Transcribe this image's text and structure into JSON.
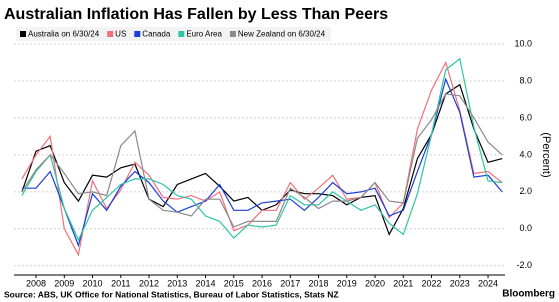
{
  "chart_data": {
    "type": "line",
    "title": "Australian Inflation Has Fallen by Less Than Peers",
    "y_axis_label": "(Percent)",
    "source": "Source: ABS, UK Office for National Statistics, Bureau of Labor Statistics, Stats NZ",
    "brand": "Bloomberg",
    "legend": "top-left",
    "grid": true,
    "x": [
      2007.5,
      2008,
      2008.5,
      2009,
      2009.5,
      2010,
      2010.5,
      2011,
      2011.5,
      2012,
      2012.5,
      2013,
      2013.5,
      2014,
      2014.5,
      2015,
      2015.5,
      2016,
      2016.5,
      2017,
      2017.5,
      2018,
      2018.5,
      2019,
      2019.5,
      2020,
      2020.5,
      2021,
      2021.5,
      2022,
      2022.5,
      2023,
      2023.5,
      2024,
      2024.5
    ],
    "xlim": [
      2007.22,
      2024.6
    ],
    "xticks": [
      2008,
      2009,
      2010,
      2011,
      2012,
      2013,
      2014,
      2015,
      2016,
      2017,
      2018,
      2019,
      2020,
      2021,
      2022,
      2023,
      2024
    ],
    "ylim": [
      -2.5,
      10.76
    ],
    "yticks": [
      {
        "value": -2,
        "label": "-2.0"
      },
      {
        "value": 0,
        "label": "0.0"
      },
      {
        "value": 2,
        "label": "2.0"
      },
      {
        "value": 4,
        "label": "4.0"
      },
      {
        "value": 6,
        "label": "6.0"
      },
      {
        "value": 8,
        "label": "8.0"
      },
      {
        "value": 10,
        "label": "10.0"
      }
    ],
    "series": [
      {
        "name": "Australia on 6/30/24",
        "color": "#000000",
        "values": [
          2.0,
          4.2,
          4.5,
          2.5,
          1.5,
          2.9,
          2.8,
          3.3,
          3.5,
          1.6,
          1.2,
          2.4,
          2.7,
          3.0,
          2.3,
          1.5,
          1.7,
          1.0,
          1.3,
          2.1,
          1.9,
          1.9,
          1.8,
          1.3,
          1.7,
          1.8,
          -0.3,
          1.1,
          3.8,
          5.1,
          7.3,
          7.8,
          5.4,
          3.6,
          3.8
        ]
      },
      {
        "name": "US",
        "color": "#f2707c",
        "values": [
          2.7,
          4.0,
          5.0,
          0.0,
          -1.4,
          2.6,
          1.1,
          2.1,
          3.6,
          2.9,
          1.7,
          1.6,
          1.8,
          1.5,
          2.0,
          -0.1,
          0.2,
          1.0,
          1.0,
          2.5,
          1.6,
          2.2,
          2.9,
          1.6,
          1.7,
          2.5,
          0.6,
          1.4,
          5.4,
          7.5,
          9.0,
          6.4,
          3.0,
          3.1,
          2.5
        ]
      },
      {
        "name": "Canada",
        "color": "#1d3fd8",
        "values": [
          2.2,
          2.2,
          3.1,
          1.1,
          -0.9,
          1.9,
          1.0,
          2.3,
          3.1,
          2.5,
          1.5,
          0.9,
          1.2,
          1.5,
          2.4,
          1.0,
          1.0,
          1.4,
          1.5,
          1.6,
          1.0,
          1.7,
          2.5,
          1.9,
          2.0,
          2.2,
          0.7,
          1.0,
          3.1,
          5.1,
          8.1,
          6.3,
          2.8,
          2.9,
          2.0
        ]
      },
      {
        "name": "Euro Area",
        "color": "#2ec4a5",
        "values": [
          1.8,
          3.1,
          4.0,
          1.1,
          -0.6,
          1.0,
          1.7,
          2.4,
          2.7,
          2.7,
          2.4,
          1.8,
          1.6,
          0.7,
          0.4,
          -0.5,
          0.2,
          0.1,
          0.2,
          1.8,
          1.3,
          1.3,
          2.0,
          1.5,
          1.0,
          1.3,
          0.3,
          -0.3,
          1.9,
          5.1,
          8.6,
          9.2,
          5.5,
          2.6,
          2.5
        ]
      },
      {
        "name": "New Zealand on 6/30/24",
        "color": "#8a8a8a",
        "values": [
          2.0,
          3.2,
          4.0,
          3.0,
          1.9,
          2.0,
          1.8,
          4.5,
          5.3,
          1.6,
          1.0,
          0.9,
          0.7,
          1.6,
          1.6,
          0.1,
          0.4,
          0.4,
          0.4,
          2.2,
          1.7,
          1.1,
          1.5,
          1.5,
          1.7,
          2.5,
          1.5,
          1.4,
          4.9,
          5.9,
          7.3,
          7.2,
          6.0,
          4.7,
          4.0
        ]
      }
    ]
  }
}
